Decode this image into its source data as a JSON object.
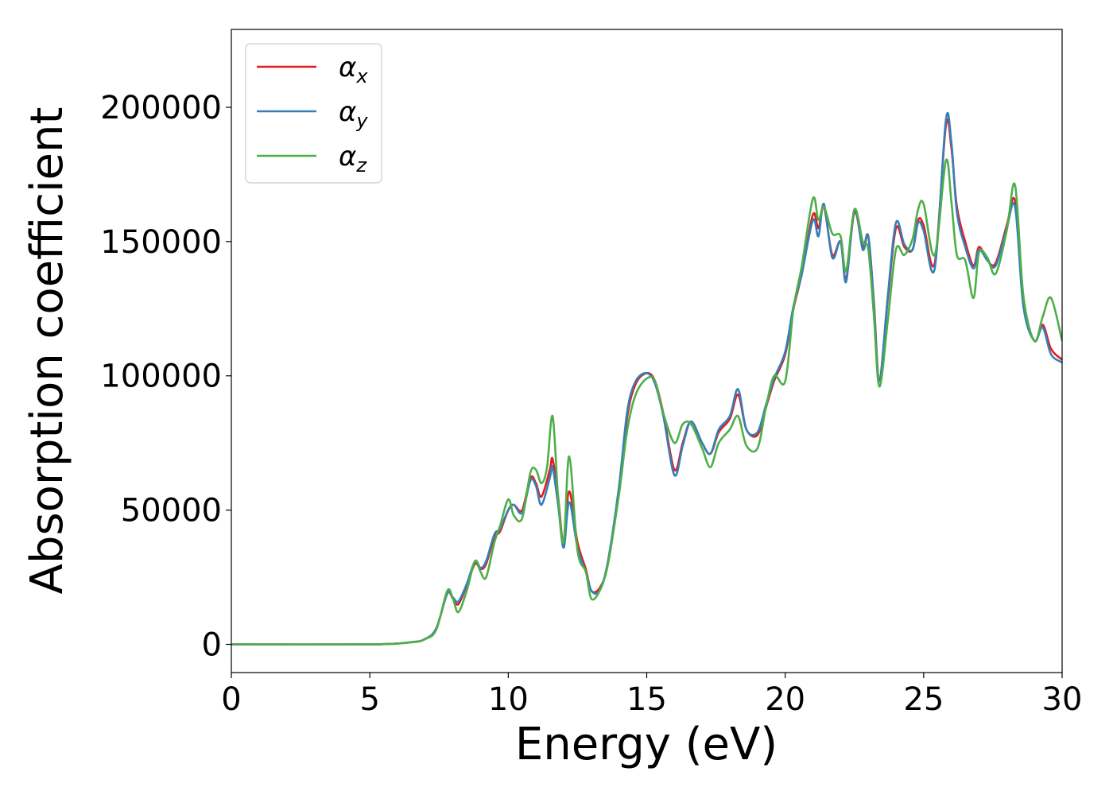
{
  "chart_data": {
    "type": "line",
    "title": "",
    "xlabel": "Energy (eV)",
    "ylabel": "Absorption coefficient",
    "xlim": [
      0,
      30
    ],
    "ylim": [
      -10500,
      229000
    ],
    "xticks": [
      0,
      5,
      10,
      15,
      20,
      25,
      30
    ],
    "yticks": [
      0,
      50000,
      100000,
      150000,
      200000
    ],
    "grid": false,
    "legend_position": "top-left",
    "series": [
      {
        "name": "αx",
        "name_base": "α",
        "name_sub": "x",
        "color": "#e41a1c",
        "x": [
          0,
          5,
          6.5,
          7,
          7.4,
          7.8,
          8.0,
          8.2,
          8.5,
          8.8,
          9.0,
          9.2,
          9.5,
          9.7,
          10.0,
          10.2,
          10.5,
          10.8,
          11.0,
          11.2,
          11.5,
          11.6,
          11.8,
          12.0,
          12.2,
          12.5,
          12.8,
          13.0,
          13.3,
          13.6,
          14.0,
          14.3,
          14.6,
          15.0,
          15.3,
          15.6,
          16.0,
          16.3,
          16.6,
          17.0,
          17.3,
          17.6,
          18.0,
          18.3,
          18.6,
          19.0,
          19.3,
          19.6,
          20.0,
          20.3,
          20.6,
          21.0,
          21.2,
          21.4,
          21.7,
          22.0,
          22.2,
          22.5,
          22.8,
          23.0,
          23.2,
          23.4,
          23.7,
          24.0,
          24.3,
          24.6,
          24.8,
          25.0,
          25.4,
          25.8,
          26.0,
          26.2,
          26.5,
          26.8,
          27.0,
          27.3,
          27.6,
          28.0,
          28.3,
          28.6,
          29.0,
          29.3,
          29.6,
          30.0
        ],
        "y": [
          0,
          0,
          800,
          2000,
          6000,
          19000,
          17000,
          15000,
          22000,
          30000,
          28000,
          30000,
          40000,
          42000,
          50000,
          52000,
          50000,
          62000,
          60000,
          55000,
          65000,
          69000,
          55000,
          37000,
          57000,
          38000,
          28000,
          20000,
          21000,
          30000,
          58000,
          85000,
          97000,
          101000,
          98000,
          86000,
          65000,
          75000,
          83000,
          75000,
          71000,
          79000,
          84000,
          93000,
          80000,
          78000,
          88000,
          98000,
          108000,
          125000,
          138000,
          160000,
          155000,
          163000,
          145000,
          150000,
          136000,
          161000,
          148000,
          152000,
          128000,
          99000,
          128000,
          155000,
          148000,
          147000,
          158000,
          156000,
          142000,
          193000,
          185000,
          163000,
          150000,
          141000,
          148000,
          143000,
          142000,
          156000,
          165000,
          128000,
          113000,
          119000,
          110000,
          106000
        ]
      },
      {
        "name": "αy",
        "name_base": "α",
        "name_sub": "y",
        "color": "#377eb8",
        "x": [
          0,
          5,
          6.5,
          7,
          7.4,
          7.8,
          8.0,
          8.2,
          8.5,
          8.8,
          9.0,
          9.2,
          9.5,
          9.7,
          10.0,
          10.2,
          10.5,
          10.8,
          11.0,
          11.2,
          11.5,
          11.6,
          11.8,
          12.0,
          12.2,
          12.5,
          12.8,
          13.0,
          13.3,
          13.6,
          14.0,
          14.3,
          14.6,
          15.0,
          15.3,
          15.6,
          16.0,
          16.3,
          16.6,
          17.0,
          17.3,
          17.6,
          18.0,
          18.3,
          18.6,
          19.0,
          19.3,
          19.6,
          20.0,
          20.3,
          20.6,
          21.0,
          21.2,
          21.4,
          21.7,
          22.0,
          22.2,
          22.5,
          22.8,
          23.0,
          23.2,
          23.4,
          23.7,
          24.0,
          24.3,
          24.6,
          24.8,
          25.0,
          25.4,
          25.8,
          26.0,
          26.2,
          26.5,
          26.8,
          27.0,
          27.3,
          27.6,
          28.0,
          28.3,
          28.6,
          29.0,
          29.3,
          29.6,
          30.0
        ],
        "y": [
          0,
          0,
          800,
          2000,
          6000,
          19000,
          17500,
          16000,
          22500,
          31000,
          28500,
          31000,
          41000,
          43000,
          50000,
          52000,
          49000,
          61000,
          59000,
          52000,
          62000,
          66000,
          52000,
          36000,
          53000,
          36000,
          27000,
          20000,
          20000,
          31000,
          59000,
          87000,
          98000,
          101000,
          97000,
          85000,
          63000,
          74000,
          83000,
          75000,
          71000,
          80000,
          85000,
          95000,
          80000,
          79000,
          89000,
          99000,
          109000,
          126000,
          138000,
          158000,
          152000,
          164000,
          144000,
          150000,
          135000,
          162000,
          147000,
          152000,
          127000,
          98000,
          129000,
          157000,
          149000,
          147000,
          157000,
          154000,
          140000,
          195000,
          187000,
          161000,
          148000,
          140000,
          147000,
          143000,
          141000,
          155000,
          163000,
          126000,
          113000,
          118000,
          108000,
          105000
        ]
      },
      {
        "name": "αz",
        "name_base": "α",
        "name_sub": "z",
        "color": "#4daf4a",
        "x": [
          0,
          5,
          6.5,
          7,
          7.4,
          7.8,
          8.0,
          8.2,
          8.5,
          8.8,
          9.0,
          9.2,
          9.5,
          9.7,
          10.0,
          10.2,
          10.5,
          10.8,
          11.0,
          11.2,
          11.4,
          11.6,
          11.8,
          12.0,
          12.2,
          12.5,
          12.8,
          13.0,
          13.3,
          13.6,
          14.0,
          14.3,
          14.6,
          15.0,
          15.3,
          15.6,
          16.0,
          16.3,
          16.6,
          17.0,
          17.3,
          17.6,
          18.0,
          18.3,
          18.6,
          19.0,
          19.3,
          19.6,
          20.0,
          20.3,
          20.6,
          21.0,
          21.2,
          21.4,
          21.7,
          22.0,
          22.2,
          22.5,
          22.8,
          23.0,
          23.2,
          23.4,
          23.7,
          24.0,
          24.3,
          24.6,
          24.8,
          25.0,
          25.4,
          25.8,
          26.0,
          26.2,
          26.5,
          26.8,
          27.0,
          27.3,
          27.6,
          28.0,
          28.3,
          28.6,
          29.0,
          29.3,
          29.6,
          30.0
        ],
        "y": [
          0,
          0,
          800,
          2000,
          5500,
          20000,
          17000,
          12000,
          20000,
          31000,
          27000,
          25000,
          38000,
          44000,
          54000,
          48000,
          47000,
          64000,
          65000,
          60000,
          66000,
          85000,
          55000,
          38000,
          70000,
          35000,
          27000,
          17000,
          20000,
          30000,
          56000,
          80000,
          93000,
          99000,
          98000,
          86000,
          75000,
          82000,
          82000,
          73000,
          66000,
          75000,
          80000,
          85000,
          74000,
          73000,
          88000,
          100000,
          98000,
          125000,
          141000,
          166000,
          158000,
          163000,
          153000,
          152000,
          139000,
          162000,
          150000,
          147000,
          123000,
          96000,
          120000,
          147000,
          145000,
          151000,
          162000,
          164000,
          145000,
          180000,
          165000,
          145000,
          143000,
          129000,
          146000,
          144000,
          138000,
          154000,
          171000,
          130000,
          113000,
          122000,
          129000,
          113000
        ]
      }
    ]
  }
}
